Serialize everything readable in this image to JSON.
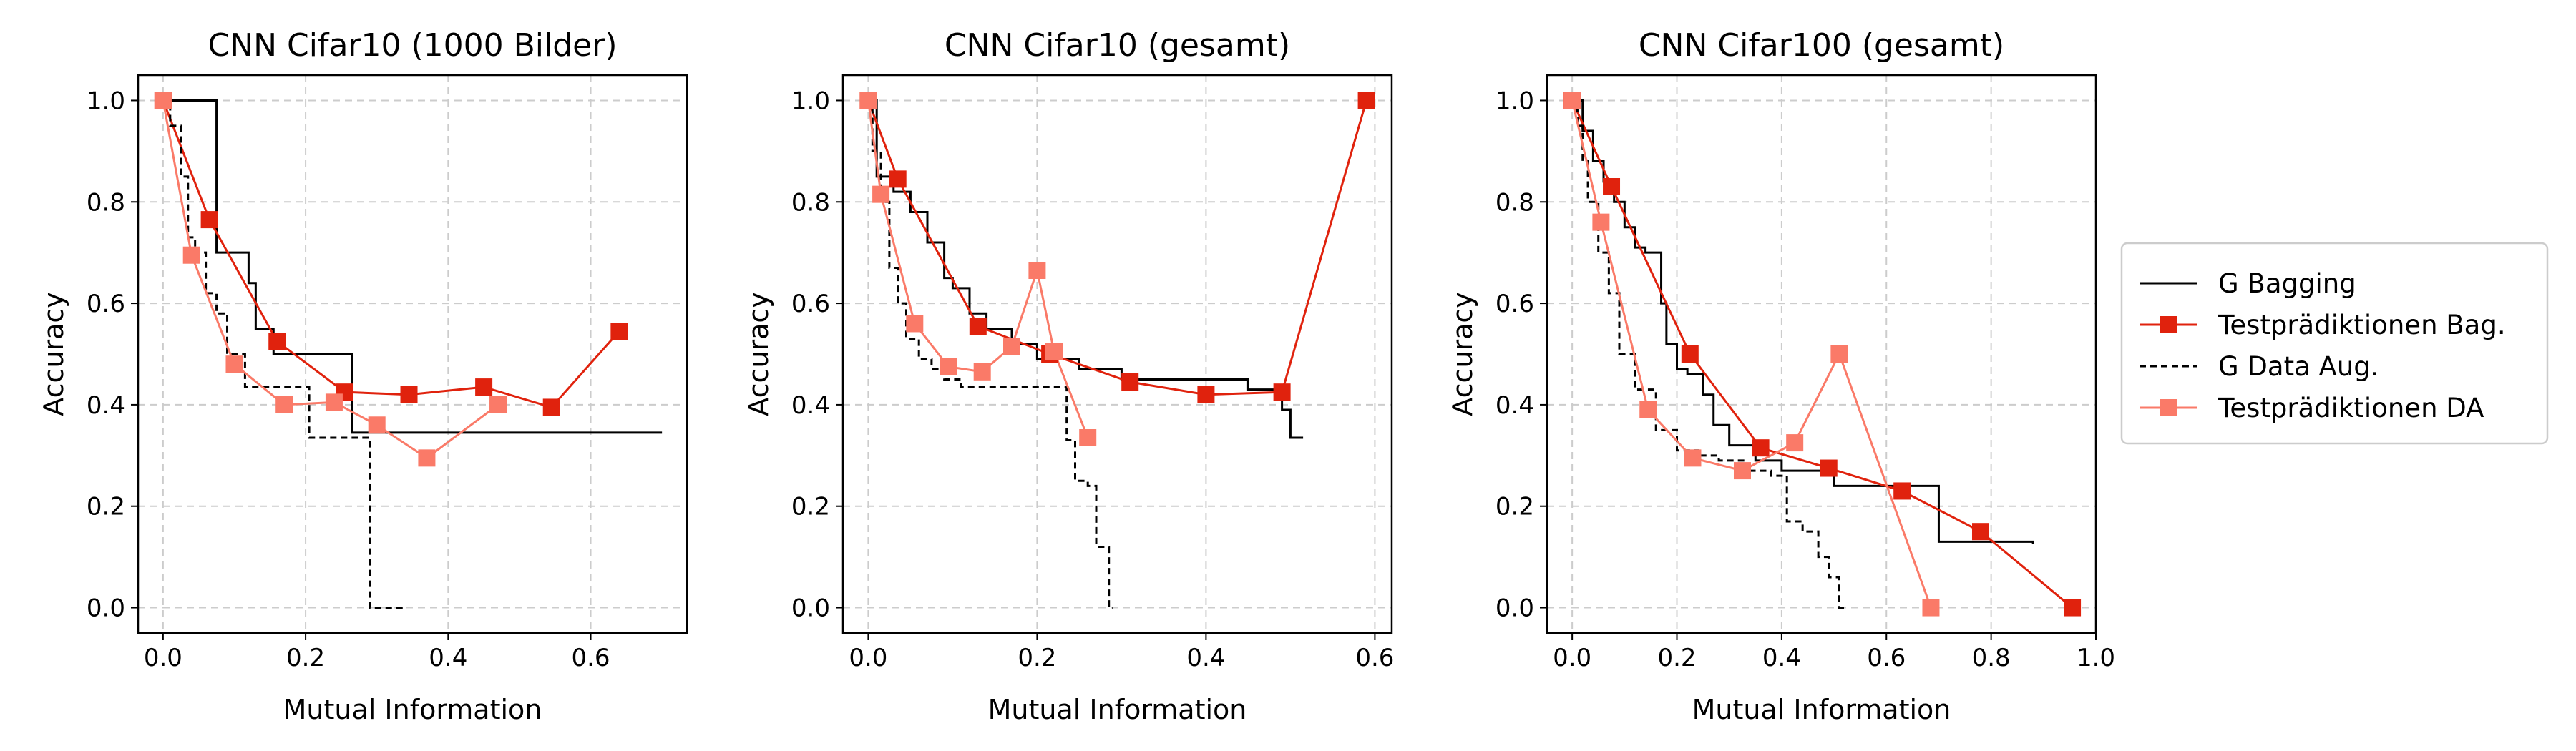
{
  "colors": {
    "g_bagging": "#000000",
    "test_bagging": "#e0220d",
    "g_data_aug": "#000000",
    "test_da": "#fa7a68",
    "grid": "#cccccc"
  },
  "legend": {
    "placement": "right-outside",
    "entries": [
      "G Bagging",
      "Testprädiktionen Bag.",
      "G Data Aug.",
      "Testprädiktionen DA"
    ]
  },
  "chart_data": [
    {
      "type": "line",
      "title": "CNN Cifar10 (1000 Bilder)",
      "xlabel": "Mutual Information",
      "ylabel": "Accuracy",
      "xlim": [
        -0.035,
        0.735
      ],
      "ylim": [
        -0.05,
        1.05
      ],
      "xticks": [
        0.0,
        0.2,
        0.4,
        0.6
      ],
      "xticklabels": [
        "0.0",
        "0.2",
        "0.4",
        "0.6"
      ],
      "yticks": [
        0.0,
        0.2,
        0.4,
        0.6,
        0.8,
        1.0
      ],
      "yticklabels": [
        "0.0",
        "0.2",
        "0.4",
        "0.6",
        "0.8",
        "1.0"
      ],
      "grid": true,
      "series": [
        {
          "name": "G Bagging",
          "style": "solid-step",
          "x": [
            0.0,
            0.07,
            0.075,
            0.105,
            0.12,
            0.13,
            0.155,
            0.265,
            0.7
          ],
          "y": [
            1.0,
            1.0,
            0.7,
            0.7,
            0.64,
            0.55,
            0.5,
            0.345,
            0.345
          ]
        },
        {
          "name": "Testprädiktionen Bag.",
          "style": "marker-line",
          "x": [
            0.0,
            0.065,
            0.16,
            0.255,
            0.345,
            0.45,
            0.545,
            0.64
          ],
          "y": [
            1.0,
            0.765,
            0.525,
            0.425,
            0.42,
            0.435,
            0.395,
            0.545
          ]
        },
        {
          "name": "G Data Aug.",
          "style": "dashed-step",
          "x": [
            0.0,
            0.01,
            0.025,
            0.035,
            0.045,
            0.06,
            0.075,
            0.09,
            0.115,
            0.205,
            0.29,
            0.34
          ],
          "y": [
            1.0,
            0.95,
            0.85,
            0.73,
            0.7,
            0.62,
            0.58,
            0.5,
            0.435,
            0.335,
            0.0,
            0.0
          ]
        },
        {
          "name": "Testprädiktionen DA",
          "style": "marker-line",
          "x": [
            0.0,
            0.04,
            0.1,
            0.17,
            0.24,
            0.3,
            0.37,
            0.47
          ],
          "y": [
            1.0,
            0.695,
            0.48,
            0.4,
            0.405,
            0.36,
            0.295,
            0.4
          ]
        }
      ]
    },
    {
      "type": "line",
      "title": "CNN Cifar10 (gesamt)",
      "xlabel": "Mutual Information",
      "ylabel": "Accuracy",
      "xlim": [
        -0.03,
        0.62
      ],
      "ylim": [
        -0.05,
        1.05
      ],
      "xticks": [
        0.0,
        0.2,
        0.4,
        0.6
      ],
      "xticklabels": [
        "0.0",
        "0.2",
        "0.4",
        "0.6"
      ],
      "yticks": [
        0.0,
        0.2,
        0.4,
        0.6,
        0.8,
        1.0
      ],
      "yticklabels": [
        "0.0",
        "0.2",
        "0.4",
        "0.6",
        "0.8",
        "1.0"
      ],
      "grid": true,
      "series": [
        {
          "name": "G Bagging",
          "style": "solid-step",
          "x": [
            0.0,
            0.01,
            0.03,
            0.05,
            0.07,
            0.09,
            0.1,
            0.12,
            0.14,
            0.17,
            0.2,
            0.25,
            0.3,
            0.45,
            0.49,
            0.5,
            0.515
          ],
          "y": [
            1.0,
            0.85,
            0.82,
            0.78,
            0.72,
            0.65,
            0.63,
            0.58,
            0.55,
            0.52,
            0.49,
            0.47,
            0.45,
            0.43,
            0.39,
            0.335,
            0.335
          ]
        },
        {
          "name": "Testprädiktionen Bag.",
          "style": "marker-line",
          "x": [
            0.0,
            0.035,
            0.13,
            0.215,
            0.31,
            0.4,
            0.49,
            0.59
          ],
          "y": [
            1.0,
            0.845,
            0.555,
            0.5,
            0.445,
            0.42,
            0.425,
            1.0
          ]
        },
        {
          "name": "G Data Aug.",
          "style": "dashed-step",
          "x": [
            0.0,
            0.005,
            0.015,
            0.025,
            0.035,
            0.045,
            0.06,
            0.075,
            0.09,
            0.11,
            0.235,
            0.245,
            0.26,
            0.27,
            0.285,
            0.29
          ],
          "y": [
            1.0,
            0.9,
            0.8,
            0.67,
            0.6,
            0.53,
            0.49,
            0.47,
            0.45,
            0.435,
            0.33,
            0.25,
            0.24,
            0.12,
            0.0,
            0.0
          ]
        },
        {
          "name": "Testprädiktionen DA",
          "style": "marker-line",
          "x": [
            0.0,
            0.015,
            0.055,
            0.095,
            0.135,
            0.17,
            0.2,
            0.22,
            0.26
          ],
          "y": [
            1.0,
            0.815,
            0.56,
            0.475,
            0.465,
            0.515,
            0.665,
            0.505,
            0.335
          ]
        }
      ]
    },
    {
      "type": "line",
      "title": "CNN Cifar100 (gesamt)",
      "xlabel": "Mutual Information",
      "ylabel": "Accuracy",
      "xlim": [
        -0.048,
        1.0
      ],
      "ylim": [
        -0.05,
        1.05
      ],
      "xticks": [
        0.0,
        0.2,
        0.4,
        0.6,
        0.8,
        1.0
      ],
      "xticklabels": [
        "0.0",
        "0.2",
        "0.4",
        "0.6",
        "0.8",
        "1.0"
      ],
      "yticks": [
        0.0,
        0.2,
        0.4,
        0.6,
        0.8,
        1.0
      ],
      "yticklabels": [
        "0.0",
        "0.2",
        "0.4",
        "0.6",
        "0.8",
        "1.0"
      ],
      "grid": true,
      "series": [
        {
          "name": "G Bagging",
          "style": "solid-step",
          "x": [
            0.0,
            0.02,
            0.04,
            0.06,
            0.08,
            0.1,
            0.12,
            0.14,
            0.17,
            0.18,
            0.2,
            0.22,
            0.25,
            0.27,
            0.3,
            0.35,
            0.4,
            0.5,
            0.65,
            0.7,
            0.88
          ],
          "y": [
            1.0,
            0.94,
            0.88,
            0.84,
            0.8,
            0.75,
            0.71,
            0.7,
            0.6,
            0.52,
            0.47,
            0.46,
            0.42,
            0.36,
            0.32,
            0.29,
            0.27,
            0.24,
            0.24,
            0.13,
            0.125
          ]
        },
        {
          "name": "Testprädiktionen Bag.",
          "style": "marker-line",
          "x": [
            0.0,
            0.075,
            0.225,
            0.36,
            0.49,
            0.63,
            0.78,
            0.955
          ],
          "y": [
            1.0,
            0.83,
            0.5,
            0.315,
            0.275,
            0.23,
            0.15,
            0.0
          ]
        },
        {
          "name": "G Data Aug.",
          "style": "dashed-step",
          "x": [
            0.0,
            0.01,
            0.02,
            0.03,
            0.05,
            0.07,
            0.09,
            0.12,
            0.16,
            0.2,
            0.24,
            0.28,
            0.33,
            0.38,
            0.41,
            0.44,
            0.47,
            0.49,
            0.51,
            0.52
          ],
          "y": [
            1.0,
            0.95,
            0.88,
            0.8,
            0.7,
            0.62,
            0.5,
            0.43,
            0.35,
            0.31,
            0.3,
            0.29,
            0.27,
            0.26,
            0.17,
            0.15,
            0.1,
            0.06,
            0.0,
            0.0
          ]
        },
        {
          "name": "Testprädiktionen DA",
          "style": "marker-line",
          "x": [
            0.0,
            0.055,
            0.145,
            0.23,
            0.325,
            0.425,
            0.51,
            0.685
          ],
          "y": [
            1.0,
            0.76,
            0.39,
            0.295,
            0.27,
            0.325,
            0.5,
            0.0
          ]
        }
      ]
    }
  ]
}
